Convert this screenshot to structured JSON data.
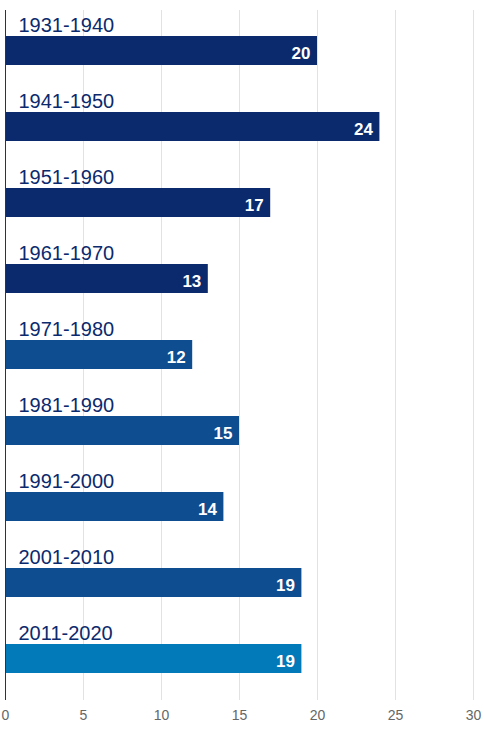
{
  "chart_data": {
    "type": "bar",
    "orientation": "horizontal",
    "categories": [
      "1931-1940",
      "1941-1950",
      "1951-1960",
      "1961-1970",
      "1971-1980",
      "1981-1990",
      "1991-2000",
      "2001-2010",
      "2011-2020"
    ],
    "values": [
      20,
      24,
      17,
      13,
      12,
      15,
      14,
      19,
      19
    ],
    "colors": [
      "#0b2a6e",
      "#0b2a6e",
      "#0b2a6e",
      "#0b2a6e",
      "#0e4d8f",
      "#0e4d8f",
      "#0e4d8f",
      "#0e4d8f",
      "#0279b9"
    ],
    "xlim": [
      0,
      30
    ],
    "xticks": [
      0,
      5,
      10,
      15,
      20,
      25,
      30
    ],
    "grid": true,
    "data_labels": true
  }
}
